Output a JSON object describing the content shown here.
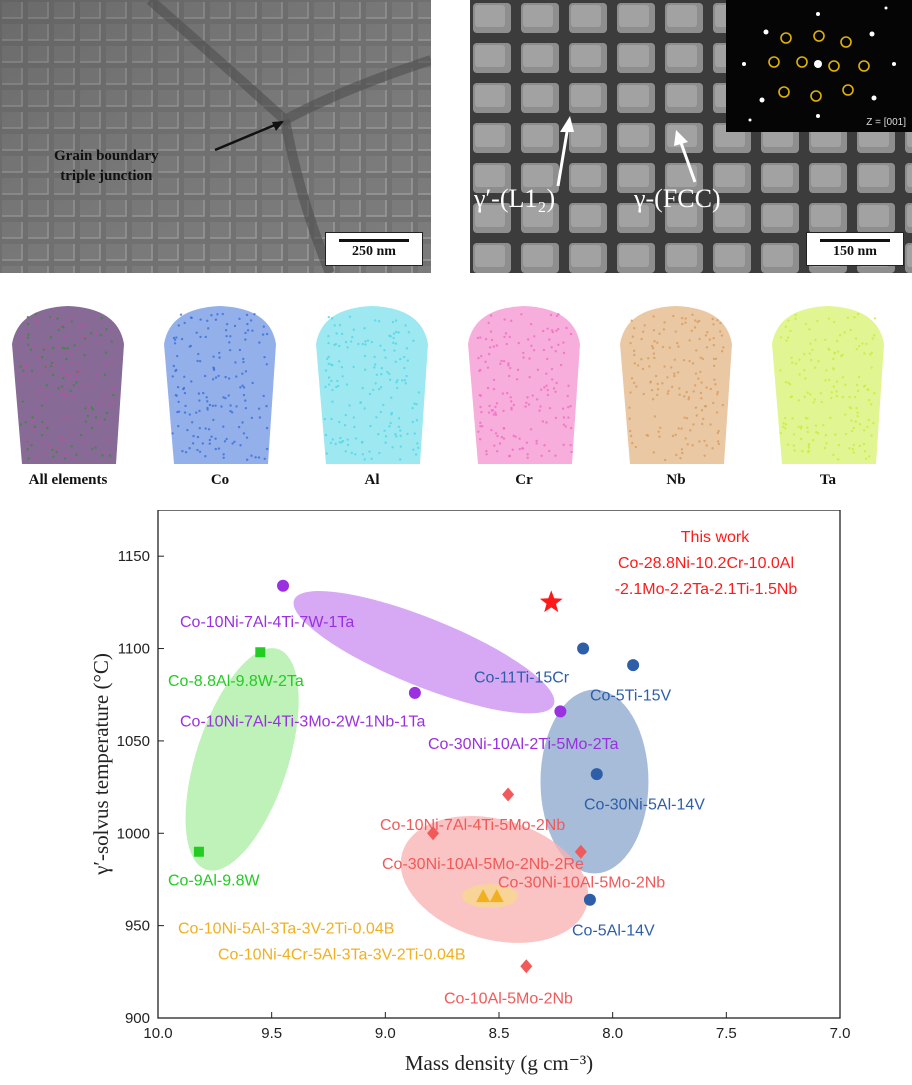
{
  "sem_left": {
    "annotation_line1": "Grain boundary",
    "annotation_line2": "triple junction",
    "scale_label": "250 nm"
  },
  "sem_right": {
    "phase_gamma_prime": "γ′-(L1₂)",
    "phase_gamma": "γ-(FCC)",
    "inset_label": "Z = [001]",
    "scale_label": "150 nm"
  },
  "apt_maps": [
    {
      "label": "All elements",
      "color": "#7a5a8a"
    },
    {
      "label": "Co",
      "color": "#3a6fd8"
    },
    {
      "label": "Al",
      "color": "#4fd6e6"
    },
    {
      "label": "Cr",
      "color": "#f06cc0"
    },
    {
      "label": "Nb",
      "color": "#d99a5a"
    },
    {
      "label": "Ta",
      "color": "#c8ec3a"
    }
  ],
  "chart_data": {
    "type": "scatter",
    "xlabel": "Mass density (g cm⁻³)",
    "ylabel": "γ′-solvus temperature (°C)",
    "xlim": [
      10.0,
      7.0
    ],
    "ylim": [
      900,
      1175
    ],
    "x_ticks": [
      "10.0",
      "9.5",
      "9.0",
      "8.5",
      "8.0",
      "7.5",
      "7.0"
    ],
    "y_ticks": [
      "900",
      "950",
      "1000",
      "1050",
      "1100",
      "1150"
    ],
    "groups": [
      {
        "color": "#9b30e0",
        "fill": "#c98cf0",
        "points": [
          {
            "x": 9.45,
            "y": 1134,
            "label": "Co-10Ni-7Al-4Ti-7W-1Ta"
          },
          {
            "x": 8.87,
            "y": 1076,
            "label": "Co-10Ni-7Al-4Ti-3Mo-2W-1Nb-1Ta"
          },
          {
            "x": 8.23,
            "y": 1066,
            "label": "Co-30Ni-10Al-2Ti-5Mo-2Ta"
          }
        ]
      },
      {
        "color": "#22cc22",
        "fill": "#a8eea0",
        "points": [
          {
            "x": 9.55,
            "y": 1098,
            "label": "Co-8.8Al-9.8W-2Ta"
          },
          {
            "x": 9.82,
            "y": 990,
            "label": "Co-9Al-9.8W"
          }
        ]
      },
      {
        "color": "#2e5ea8",
        "fill": "#8aa6cc",
        "points": [
          {
            "x": 8.13,
            "y": 1100,
            "label": "Co-11Ti-15Cr"
          },
          {
            "x": 7.91,
            "y": 1091,
            "label": "Co-5Ti-15V"
          },
          {
            "x": 8.07,
            "y": 1032,
            "label": "Co-30Ni-5Al-14V"
          },
          {
            "x": 8.1,
            "y": 964,
            "label": "Co-5Al-14V"
          }
        ]
      },
      {
        "color": "#f05a5a",
        "fill": "#f8b0b0",
        "points": [
          {
            "x": 8.46,
            "y": 1021,
            "label": "Co-10Ni-7Al-4Ti-5Mo-2Nb"
          },
          {
            "x": 8.79,
            "y": 1000,
            "label": "Co-30Ni-10Al-5Mo-2Nb-2Re"
          },
          {
            "x": 8.14,
            "y": 990,
            "label": "Co-30Ni-10Al-5Mo-2Nb"
          },
          {
            "x": 8.38,
            "y": 928,
            "label": "Co-10Al-5Mo-2Nb"
          }
        ]
      },
      {
        "color": "#f0b020",
        "fill": "#f7d98a",
        "points": [
          {
            "x": 8.57,
            "y": 966,
            "label": "Co-10Ni-5Al-3Ta-3V-2Ti-0.04B"
          },
          {
            "x": 8.51,
            "y": 966,
            "label": "Co-10Ni-4Cr-5Al-3Ta-3V-2Ti-0.04B"
          }
        ]
      }
    ],
    "this_work": {
      "x": 8.27,
      "y": 1125,
      "color": "#ff1a1a",
      "heading": "This work",
      "line1": "Co-28.8Ni-10.2Cr-10.0Al",
      "line2": "-2.1Mo-2.2Ta-2.1Ti-1.5Nb"
    }
  }
}
